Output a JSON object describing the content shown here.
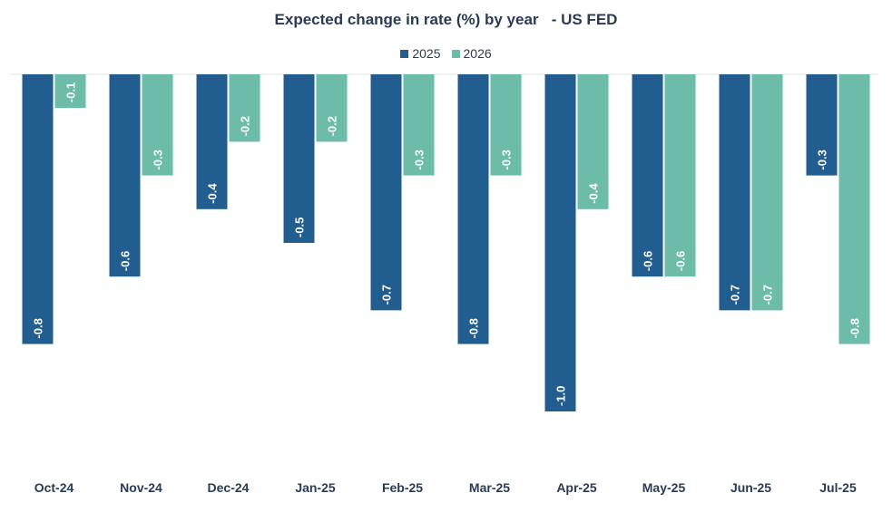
{
  "chart_data": {
    "type": "bar",
    "title": "Expected change in rate (%) by year   - US FED",
    "xlabel": "",
    "ylabel": "",
    "ylim": [
      -1.12,
      0
    ],
    "grid": false,
    "legend_position": "top-center",
    "categories": [
      "Oct-24",
      "Nov-24",
      "Dec-24",
      "Jan-25",
      "Feb-25",
      "Mar-25",
      "Apr-25",
      "May-25",
      "Jun-25",
      "Jul-25"
    ],
    "series": [
      {
        "name": "2025",
        "color": "#215d8e",
        "values": [
          -0.8,
          -0.6,
          -0.4,
          -0.5,
          -0.7,
          -0.8,
          -1.0,
          -0.6,
          -0.7,
          -0.3
        ],
        "labels": [
          "-0.8",
          "-0.6",
          "-0.4",
          "-0.5",
          "-0.7",
          "-0.8",
          "-1.0",
          "-0.6",
          "-0.7",
          "-0.3"
        ]
      },
      {
        "name": "2026",
        "color": "#6dbcaa",
        "values": [
          -0.1,
          -0.3,
          -0.2,
          -0.2,
          -0.3,
          -0.3,
          -0.4,
          -0.6,
          -0.7,
          -0.8
        ],
        "labels": [
          "-0.1",
          "-0.3",
          "-0.2",
          "-0.2",
          "-0.3",
          "-0.3",
          "-0.4",
          "-0.6",
          "-0.7",
          "-0.8"
        ]
      }
    ]
  }
}
